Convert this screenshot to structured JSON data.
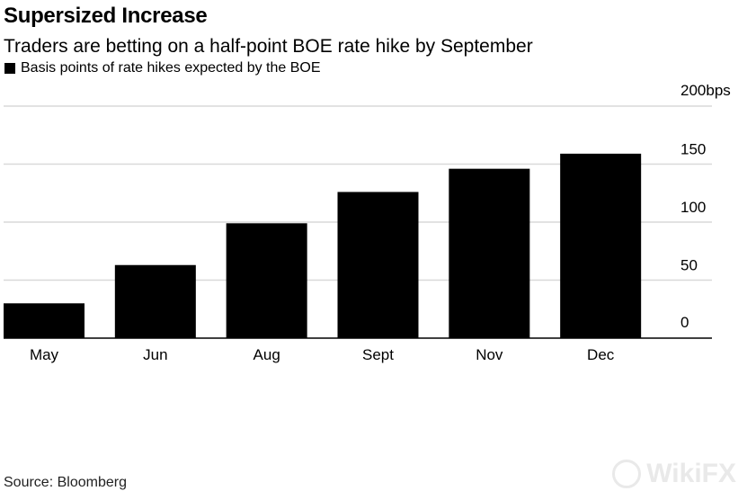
{
  "title": "Supersized Increase",
  "subtitle": "Traders are betting on a half-point BOE rate hike by September",
  "legend_label": "Basis points of rate hikes expected by the BOE",
  "source": "Source: Bloomberg",
  "watermark": "WikiFX",
  "colors": {
    "bar": "#000000",
    "grid": "#d9d9d9",
    "axis": "#000000"
  },
  "chart_data": {
    "type": "bar",
    "categories": [
      "May",
      "Jun",
      "Aug",
      "Sept",
      "Nov",
      "Dec"
    ],
    "series": [
      {
        "values": [
          30,
          63,
          99,
          126,
          146,
          159
        ]
      }
    ],
    "ylim": [
      0,
      200
    ],
    "yticks": [
      0,
      50,
      100,
      150,
      200
    ],
    "ytick_labels": [
      "0",
      "50",
      "100",
      "150",
      "200bps"
    ],
    "y_axis_position": "right",
    "grid": true,
    "legend_position": "top-left"
  }
}
